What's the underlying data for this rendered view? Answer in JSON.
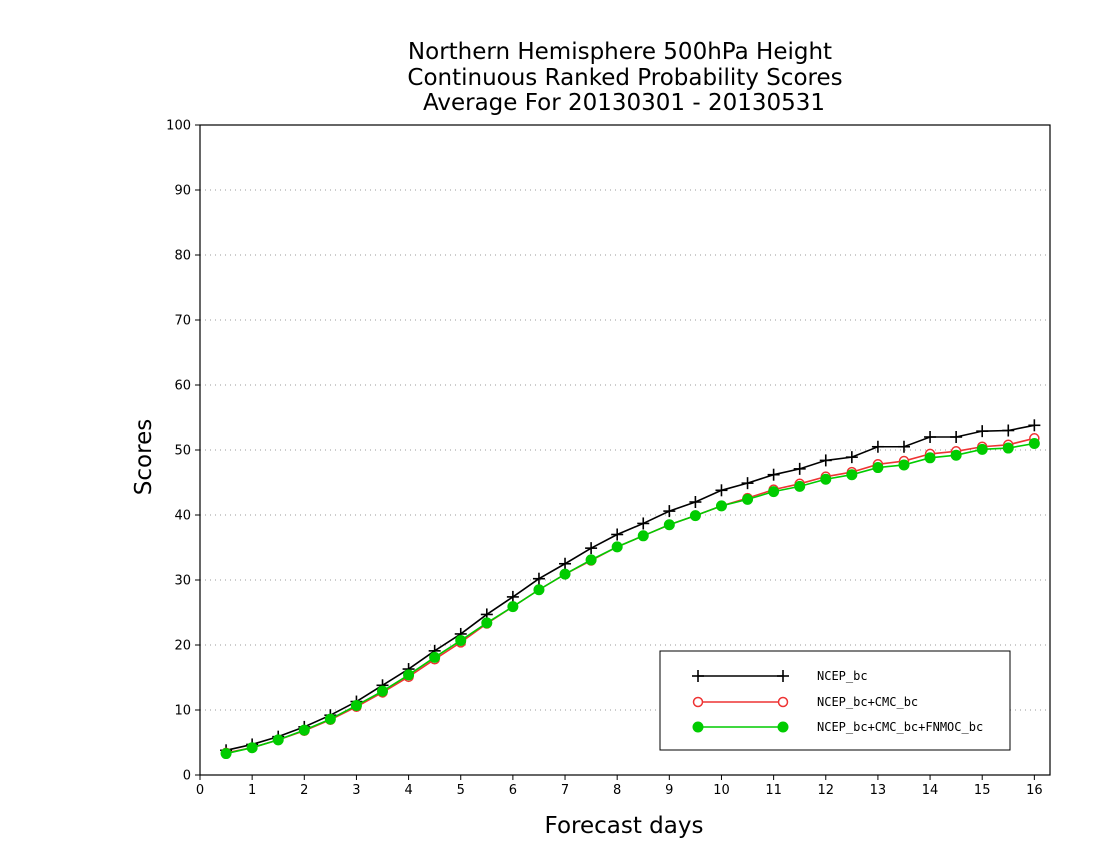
{
  "chart_data": {
    "type": "line",
    "title": [
      "Northern Hemisphere 500hPa Height",
      "Continuous Ranked Probability Scores",
      "Average For 20130301 - 20130531"
    ],
    "xlabel": "Forecast days",
    "ylabel": "Scores",
    "xlim": [
      0,
      16.3
    ],
    "ylim": [
      0,
      100
    ],
    "xticks": [
      0,
      1,
      2,
      3,
      4,
      5,
      6,
      7,
      8,
      9,
      10,
      11,
      12,
      13,
      14,
      15,
      16
    ],
    "yticks": [
      0,
      10,
      20,
      30,
      40,
      50,
      60,
      70,
      80,
      90,
      100
    ],
    "grid": true,
    "legend_position": "bottom-right",
    "x": [
      0.5,
      1,
      1.5,
      2,
      2.5,
      3,
      3.5,
      4,
      4.5,
      5,
      5.5,
      6,
      6.5,
      7,
      7.5,
      8,
      8.5,
      9,
      9.5,
      10,
      10.5,
      11,
      11.5,
      12,
      12.5,
      13,
      13.5,
      14,
      14.5,
      15,
      15.5,
      16
    ],
    "series": [
      {
        "name": "NCEP_bc",
        "color": "#000000",
        "marker": "plus",
        "values": [
          3.8,
          4.7,
          5.9,
          7.4,
          9.2,
          11.3,
          13.8,
          16.3,
          19.1,
          21.7,
          24.7,
          27.4,
          30.2,
          32.5,
          34.9,
          37.0,
          38.7,
          40.6,
          42.0,
          43.8,
          44.9,
          46.2,
          47.1,
          48.4,
          48.9,
          50.5,
          50.5,
          52.0,
          52.0,
          52.9,
          53.0,
          53.8
        ]
      },
      {
        "name": "NCEP_bc+CMC_bc",
        "color": "#ee3333",
        "marker": "open-circle",
        "values": [
          3.4,
          4.2,
          5.4,
          6.8,
          8.5,
          10.5,
          12.7,
          15.1,
          17.8,
          20.4,
          23.3,
          25.9,
          28.5,
          30.9,
          33.0,
          35.1,
          36.8,
          38.5,
          39.9,
          41.4,
          42.6,
          43.9,
          44.8,
          45.9,
          46.6,
          47.8,
          48.3,
          49.4,
          49.8,
          50.5,
          50.8,
          51.8
        ]
      },
      {
        "name": "NCEP_bc+CMC_bc+FNMOC_bc",
        "color": "#00cc00",
        "marker": "filled-circle",
        "values": [
          3.3,
          4.2,
          5.4,
          6.9,
          8.6,
          10.7,
          12.9,
          15.4,
          18.1,
          20.7,
          23.4,
          25.9,
          28.5,
          30.9,
          33.1,
          35.1,
          36.8,
          38.5,
          39.9,
          41.4,
          42.4,
          43.6,
          44.4,
          45.5,
          46.2,
          47.3,
          47.7,
          48.8,
          49.2,
          50.1,
          50.3,
          51.0
        ]
      }
    ]
  }
}
